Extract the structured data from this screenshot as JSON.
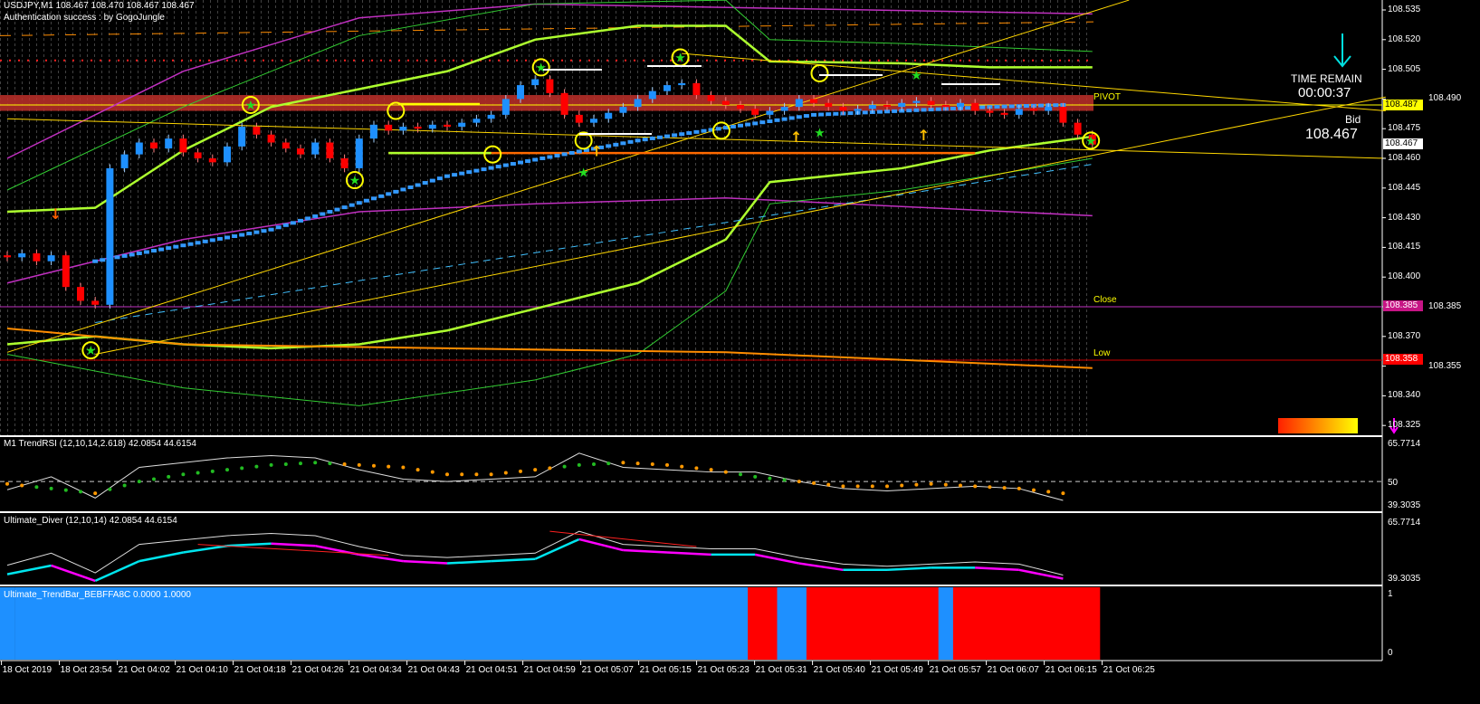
{
  "header": {
    "symbol_line": "USDJPY,M1  108.467 108.470 108.467 108.467",
    "auth_line": "Authentication success : by GogoJungle"
  },
  "panel": {
    "time_remain_label": "TIME REMAIN",
    "time_remain_value": "00:00:37",
    "bid_label": "Bid",
    "bid_value": "108.467"
  },
  "levels": {
    "pivot": {
      "label": "PIVOT",
      "price": 108.487,
      "tag": "108.487",
      "color": "#ffff00"
    },
    "close": {
      "label": "Close",
      "price": 108.385,
      "tag": "108.385",
      "color": "#c71585"
    },
    "low": {
      "label": "Low",
      "price": 108.358,
      "tag": "108.358",
      "color": "#ff0000"
    },
    "bid": {
      "price": 108.467,
      "tag": "108.467"
    }
  },
  "colors": {
    "bull": "#1e90ff",
    "bear": "#ff0000",
    "band_thick": "#adff2f",
    "band_thin": "#32cd32",
    "envelope": "#c030c0",
    "ma": "#3399ff",
    "trend": "#ffd700",
    "orange": "#ff8c00",
    "circle": "#ffff00",
    "star": "#22dd22",
    "trendbar_up": "#1e90ff",
    "trendbar_down": "#ff0000"
  },
  "chart_data": [
    {
      "type": "candlestick",
      "symbol": "USDJPY",
      "timeframe": "M1",
      "ylim": [
        108.325,
        108.54
      ],
      "y_ticks": [
        "108.535",
        "108.520",
        "108.505",
        "108.490",
        "108.475",
        "108.460",
        "108.445",
        "108.430",
        "108.415",
        "108.400",
        "108.385",
        "108.370",
        "108.355",
        "108.340",
        "108.325"
      ],
      "x_ticks": [
        "18 Oct 2019",
        "18 Oct 23:54",
        "21 Oct 04:02",
        "21 Oct 04:10",
        "21 Oct 04:18",
        "21 Oct 04:26",
        "21 Oct 04:34",
        "21 Oct 04:43",
        "21 Oct 04:51",
        "21 Oct 04:59",
        "21 Oct 05:07",
        "21 Oct 05:15",
        "21 Oct 05:23",
        "21 Oct 05:31",
        "21 Oct 05:40",
        "21 Oct 05:49",
        "21 Oct 05:57",
        "21 Oct 06:07",
        "21 Oct 06:15",
        "21 Oct 06:25"
      ],
      "closes": [
        108.41,
        108.412,
        108.408,
        108.411,
        108.395,
        108.388,
        108.386,
        108.455,
        108.462,
        108.468,
        108.465,
        108.47,
        108.463,
        108.46,
        108.458,
        108.466,
        108.476,
        108.472,
        108.468,
        108.465,
        108.462,
        108.468,
        108.46,
        108.455,
        108.47,
        108.477,
        108.474,
        108.476,
        108.475,
        108.477,
        108.476,
        108.478,
        108.48,
        108.482,
        108.49,
        108.497,
        108.5,
        108.493,
        108.482,
        108.478,
        108.48,
        108.483,
        108.486,
        108.49,
        108.494,
        108.497,
        108.498,
        108.492,
        108.489,
        108.487,
        108.485,
        108.482,
        108.484,
        108.486,
        108.49,
        108.488,
        108.486,
        108.484,
        108.485,
        108.487,
        108.486,
        108.488,
        108.489,
        108.487,
        108.486,
        108.488,
        108.484,
        108.483,
        108.482,
        108.485,
        108.484,
        108.486,
        108.478,
        108.472,
        108.467
      ],
      "indicators": {
        "band_upper": [
          [
            0,
            108.433
          ],
          [
            6,
            108.435
          ],
          [
            12,
            108.464
          ],
          [
            18,
            108.486
          ],
          [
            24,
            108.495
          ],
          [
            30,
            108.504
          ],
          [
            36,
            108.52
          ],
          [
            43,
            108.527
          ],
          [
            49,
            108.527
          ],
          [
            52,
            108.509
          ],
          [
            61,
            108.508
          ],
          [
            67,
            108.506
          ],
          [
            74,
            108.506
          ]
        ],
        "band_lower": [
          [
            0,
            108.366
          ],
          [
            6,
            108.37
          ],
          [
            12,
            108.366
          ],
          [
            18,
            108.364
          ],
          [
            24,
            108.366
          ],
          [
            30,
            108.373
          ],
          [
            36,
            108.384
          ],
          [
            43,
            108.397
          ],
          [
            49,
            108.419
          ],
          [
            52,
            108.448
          ],
          [
            61,
            108.455
          ],
          [
            67,
            108.464
          ],
          [
            74,
            108.471
          ]
        ],
        "outer_upper": [
          [
            0,
            108.444
          ],
          [
            12,
            108.486
          ],
          [
            24,
            108.522
          ],
          [
            36,
            108.538
          ],
          [
            49,
            108.54
          ],
          [
            52,
            108.52
          ],
          [
            61,
            108.518
          ],
          [
            74,
            108.514
          ]
        ],
        "outer_lower": [
          [
            0,
            108.361
          ],
          [
            12,
            108.344
          ],
          [
            24,
            108.335
          ],
          [
            36,
            108.348
          ],
          [
            43,
            108.361
          ],
          [
            49,
            108.393
          ],
          [
            52,
            108.437
          ],
          [
            61,
            108.444
          ],
          [
            74,
            108.46
          ]
        ],
        "envelope_upper": [
          [
            0,
            108.46
          ],
          [
            12,
            108.504
          ],
          [
            24,
            108.531
          ],
          [
            36,
            108.538
          ],
          [
            74,
            108.533
          ]
        ],
        "envelope_lower": [
          [
            0,
            108.397
          ],
          [
            12,
            108.419
          ],
          [
            24,
            108.433
          ],
          [
            36,
            108.437
          ],
          [
            49,
            108.44
          ],
          [
            74,
            108.431
          ]
        ],
        "ma": [
          [
            6,
            108.408
          ],
          [
            18,
            108.424
          ],
          [
            30,
            108.451
          ],
          [
            43,
            108.469
          ],
          [
            55,
            108.482
          ],
          [
            67,
            108.486
          ],
          [
            72,
            108.487
          ]
        ],
        "orange_line": [
          [
            0,
            108.374
          ],
          [
            12,
            108.366
          ],
          [
            30,
            108.364
          ],
          [
            49,
            108.362
          ],
          [
            74,
            108.354
          ]
        ],
        "dashed_line": [
          [
            6,
            108.377
          ],
          [
            74,
            108.457
          ]
        ],
        "trendlines": [
          [
            [
              0,
              108.362
            ],
            [
              76.5,
              108.54
            ]
          ],
          [
            [
              6,
              108.361
            ],
            [
              94,
              108.491
            ]
          ],
          [
            [
              0,
              108.48
            ],
            [
              94,
              108.46
            ]
          ],
          [
            [
              46,
              108.513
            ],
            [
              94,
              108.484
            ]
          ]
        ],
        "support_line": [
          [
            26,
            108.4627
          ],
          [
            66,
            108.4627
          ]
        ]
      },
      "signals": {
        "circles": [
          [
            5.7,
            108.363
          ],
          [
            16.6,
            108.487
          ],
          [
            26.5,
            108.484
          ],
          [
            23.7,
            108.449
          ],
          [
            33.1,
            108.462
          ],
          [
            36.4,
            108.506
          ],
          [
            39.3,
            108.469
          ],
          [
            45.9,
            108.511
          ],
          [
            48.7,
            108.474
          ],
          [
            55.4,
            108.503
          ],
          [
            73.9,
            108.469
          ]
        ],
        "stars": [
          [
            5.7,
            108.363
          ],
          [
            16.6,
            108.487
          ],
          [
            23.7,
            108.449
          ],
          [
            36.4,
            108.506
          ],
          [
            45.9,
            108.511
          ],
          [
            39.3,
            108.453
          ],
          [
            55.4,
            108.473
          ],
          [
            62,
            108.502
          ],
          [
            73.9,
            108.469
          ]
        ],
        "up_arrows": [
          [
            40.2,
            108.464
          ],
          [
            53.8,
            108.471
          ],
          [
            62.5,
            108.472
          ]
        ],
        "down_arrows": [
          [
            3.3,
            108.432
          ]
        ]
      }
    },
    {
      "type": "line",
      "title": "M1  TrendRSI (12,10,14,2.618) 42.0854 44.6154",
      "ylim": [
        39.3035,
        65.7714
      ],
      "y_ticks": [
        "65.7714",
        "50",
        "39.3035"
      ],
      "level": 50,
      "step_bars": 3,
      "rsi": [
        46.5,
        52,
        43,
        56,
        58,
        60,
        61,
        60,
        55,
        51,
        50,
        51,
        52,
        62,
        56,
        55,
        54,
        54,
        50,
        47,
        46,
        47,
        48,
        47,
        42
      ],
      "dots": [
        49,
        47,
        45,
        50,
        53,
        55,
        57,
        58,
        57,
        56,
        53,
        53,
        55,
        57,
        58,
        57,
        55,
        52,
        50,
        48,
        48,
        49,
        48,
        47,
        45
      ]
    },
    {
      "type": "line",
      "title": "Ultimate_Diver (12,10,14) 42.0854 44.6154",
      "ylim": [
        39.3035,
        65.7714
      ],
      "y_ticks": [
        "65.7714",
        "39.3035"
      ],
      "step_bars": 3,
      "main": [
        46.5,
        52,
        43,
        56,
        58,
        60,
        61,
        60,
        55,
        51,
        50,
        51,
        52,
        62,
        56,
        55,
        54,
        54,
        50,
        47,
        46,
        47,
        48,
        47,
        42
      ],
      "signal": [
        44,
        48,
        41,
        50,
        54,
        57,
        58,
        57,
        53,
        50,
        49,
        50,
        51,
        60,
        55,
        54,
        53,
        53,
        49,
        46,
        46,
        47,
        47,
        46,
        42
      ],
      "divergences": [
        [
          [
            13,
            56
          ],
          [
            26,
            51
          ]
        ],
        [
          [
            37,
            62
          ],
          [
            47,
            55
          ]
        ]
      ]
    },
    {
      "type": "bar",
      "title": "Ultimate_TrendBar_BEBFFA8C 0.0000 1.0000",
      "ylim": [
        0,
        1
      ],
      "y_ticks": [
        "1",
        "0"
      ],
      "states": [
        1,
        1,
        1,
        1,
        1,
        1,
        1,
        1,
        1,
        1,
        1,
        1,
        1,
        1,
        1,
        1,
        1,
        1,
        1,
        1,
        1,
        1,
        1,
        1,
        1,
        1,
        1,
        1,
        1,
        1,
        1,
        1,
        1,
        1,
        1,
        1,
        1,
        1,
        1,
        1,
        1,
        1,
        1,
        1,
        1,
        1,
        1,
        1,
        1,
        1,
        1,
        0,
        0,
        1,
        1,
        0,
        0,
        0,
        0,
        0,
        0,
        0,
        0,
        0,
        1,
        0,
        0,
        0,
        0,
        0,
        0,
        0,
        0,
        0,
        0
      ]
    }
  ]
}
